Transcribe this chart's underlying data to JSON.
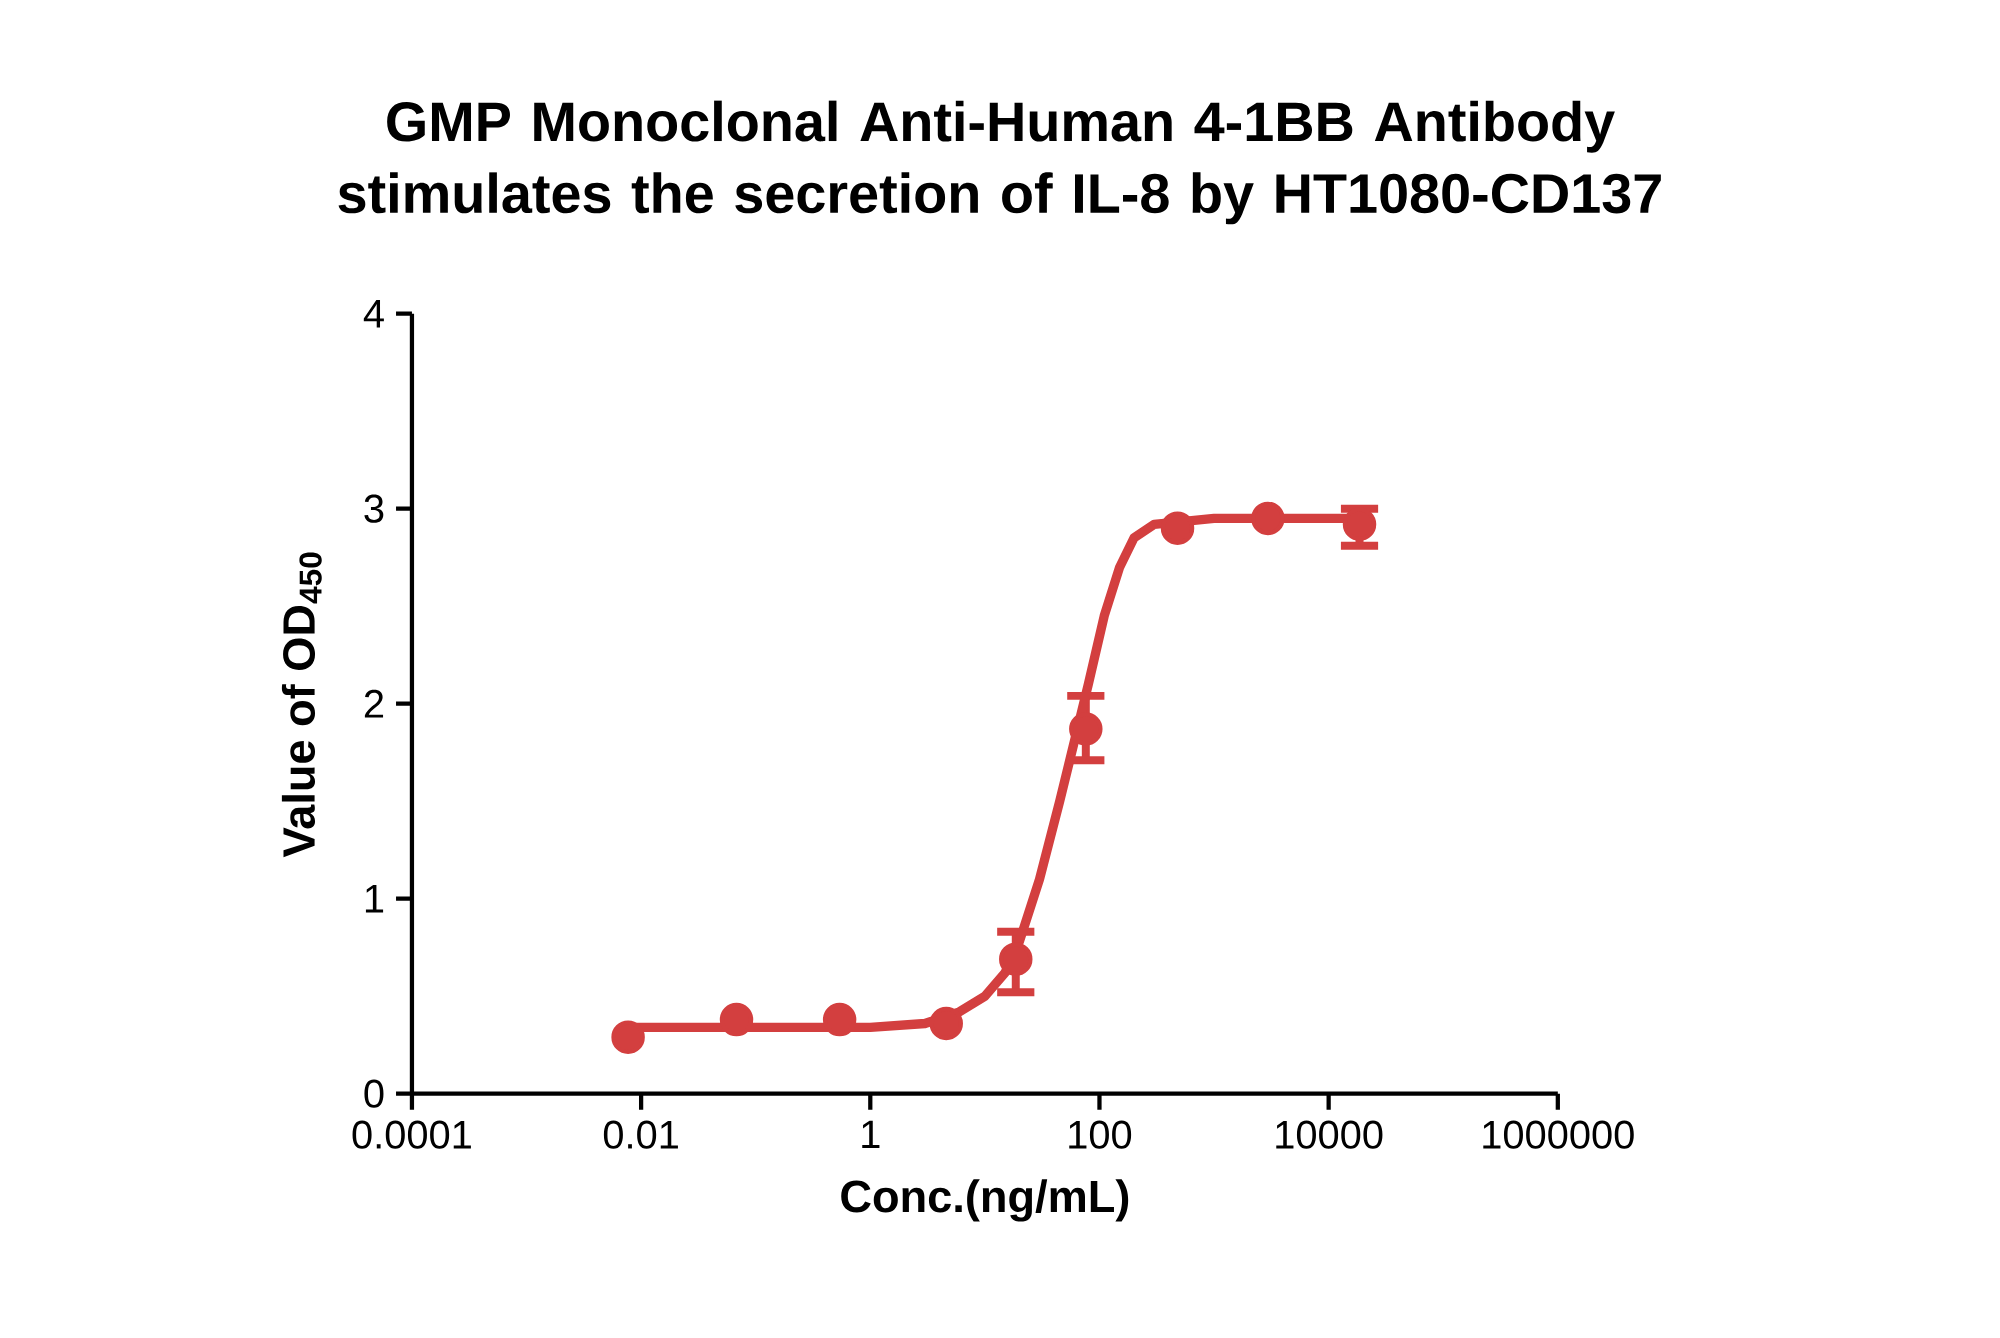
{
  "chart_data": {
    "type": "scatter",
    "title": "GMP Monoclonal Anti-Human 4-1BB Antibody stimulates the secretion of IL-8 by HT1080-CD137",
    "xlabel": "Conc.(ng/mL)",
    "ylabel": "Value of OD$_{450}$",
    "log": "x",
    "xlim": [
      0.0001,
      1000000
    ],
    "xticks": [
      0.0001,
      0.01,
      1,
      100,
      10000,
      1000000
    ],
    "ylim": [
      0,
      4
    ],
    "yticks": [
      0,
      1,
      2,
      3,
      4
    ],
    "series": [
      {
        "color": "#d33f3f",
        "marker": "circle",
        "x": [
          0.0077,
          0.068,
          0.54,
          4.6,
          18.6,
          76,
          480,
          2950,
          18600
        ],
        "values": [
          0.29,
          0.38,
          0.38,
          0.36,
          0.69,
          1.87,
          2.9,
          2.95,
          2.92
        ],
        "errors": [
          null,
          null,
          null,
          null,
          [
            0.52,
            0.83
          ],
          [
            1.71,
            2.04
          ],
          null,
          null,
          [
            2.81,
            3.0
          ]
        ]
      },
      {
        "type": "line",
        "color": "#d33f3f",
        "marker": "none",
        "x": [
          0.0077,
          0.1,
          1,
          3,
          6,
          10,
          15,
          20,
          30,
          45,
          60,
          80,
          110,
          150,
          200,
          300,
          1000,
          18600
        ],
        "values": [
          0.34,
          0.34,
          0.34,
          0.36,
          0.42,
          0.5,
          0.62,
          0.78,
          1.1,
          1.5,
          1.8,
          2.1,
          2.45,
          2.7,
          2.85,
          2.92,
          2.95,
          2.95
        ]
      }
    ]
  }
}
